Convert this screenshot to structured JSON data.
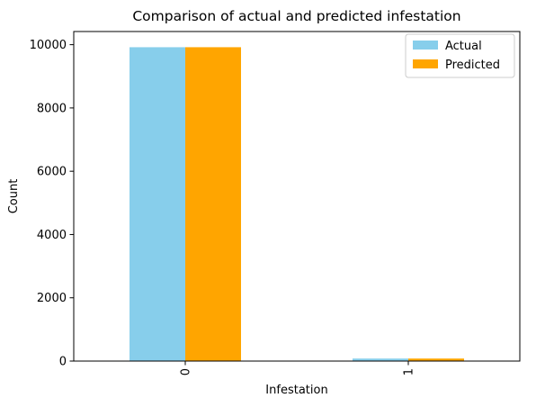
{
  "chart_data": {
    "type": "bar",
    "title": "Comparison of actual and predicted infestation",
    "xlabel": "Infestation",
    "ylabel": "Count",
    "categories": [
      "0",
      "1"
    ],
    "series": [
      {
        "name": "Actual",
        "color": "#87ceeb",
        "values": [
          9920,
          80
        ]
      },
      {
        "name": "Predicted",
        "color": "#ffa500",
        "values": [
          9920,
          80
        ]
      }
    ],
    "ylim": [
      0,
      10416
    ],
    "yticks": [
      0,
      2000,
      4000,
      6000,
      8000,
      10000
    ],
    "grid": false,
    "legend_position": "top-right"
  }
}
